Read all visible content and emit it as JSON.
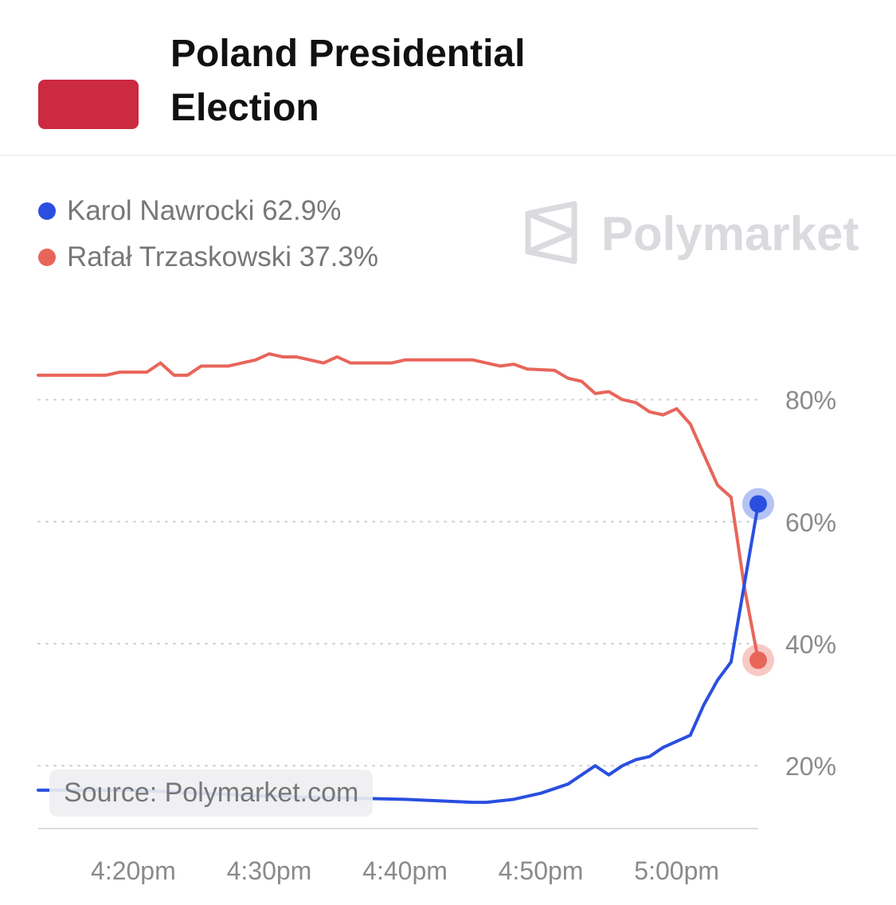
{
  "header": {
    "title_line1": "Poland Presidential",
    "title_line2": "Election",
    "flag_color": "#cc2a40"
  },
  "legend": {
    "items": [
      {
        "label": "Karol Nawrocki 62.9%",
        "color": "#2a4fe0"
      },
      {
        "label": "Rafał Trzaskowski 37.3%",
        "color": "#e8655a"
      }
    ]
  },
  "watermark": {
    "text": "Polymarket",
    "icon": "polymarket-logo-icon",
    "color": "#dadadf"
  },
  "source": {
    "text": "Source: Polymarket.com"
  },
  "chart_data": {
    "type": "line",
    "title": "Poland Presidential Election",
    "xlabel": "",
    "ylabel": "",
    "ylim": [
      0,
      100
    ],
    "xlim": [
      "4:13pm",
      "5:06pm"
    ],
    "y_ticks": [
      "20%",
      "40%",
      "60%",
      "80%"
    ],
    "x_ticks": [
      "4:20pm",
      "4:30pm",
      "4:40pm",
      "4:50pm",
      "5:00pm"
    ],
    "grid": true,
    "legend_position": "top-left",
    "series": [
      {
        "name": "Rafał Trzaskowski",
        "color": "#e8655a",
        "values": [
          [
            "4:13pm",
            84
          ],
          [
            "4:18pm",
            84
          ],
          [
            "4:19pm",
            84.5
          ],
          [
            "4:21pm",
            84.5
          ],
          [
            "4:22pm",
            86
          ],
          [
            "4:23pm",
            84
          ],
          [
            "4:24pm",
            84
          ],
          [
            "4:25pm",
            85.5
          ],
          [
            "4:27pm",
            85.5
          ],
          [
            "4:29pm",
            86.5
          ],
          [
            "4:30pm",
            87.5
          ],
          [
            "4:31pm",
            87
          ],
          [
            "4:32pm",
            87
          ],
          [
            "4:34pm",
            86
          ],
          [
            "4:35pm",
            87
          ],
          [
            "4:36pm",
            86
          ],
          [
            "4:39pm",
            86
          ],
          [
            "4:40pm",
            86.5
          ],
          [
            "4:45pm",
            86.5
          ],
          [
            "4:46pm",
            86
          ],
          [
            "4:47pm",
            85.5
          ],
          [
            "4:48pm",
            85.8
          ],
          [
            "4:49pm",
            85
          ],
          [
            "4:51pm",
            84.8
          ],
          [
            "4:52pm",
            83.5
          ],
          [
            "4:53pm",
            83
          ],
          [
            "4:54pm",
            81
          ],
          [
            "4:55pm",
            81.3
          ],
          [
            "4:56pm",
            80
          ],
          [
            "4:57pm",
            79.5
          ],
          [
            "4:58pm",
            78
          ],
          [
            "4:59pm",
            77.5
          ],
          [
            "5:00pm",
            78.5
          ],
          [
            "5:01pm",
            76
          ],
          [
            "5:02pm",
            71
          ],
          [
            "5:03pm",
            66
          ],
          [
            "5:04pm",
            64
          ],
          [
            "5:05pm",
            49
          ],
          [
            "5:06pm",
            37.3
          ]
        ]
      },
      {
        "name": "Karol Nawrocki",
        "color": "#2a4fe0",
        "values": [
          [
            "4:13pm",
            16
          ],
          [
            "4:20pm",
            16
          ],
          [
            "4:30pm",
            15
          ],
          [
            "4:40pm",
            14.5
          ],
          [
            "4:45pm",
            14
          ],
          [
            "4:46pm",
            14
          ],
          [
            "4:48pm",
            14.5
          ],
          [
            "4:50pm",
            15.5
          ],
          [
            "4:52pm",
            17
          ],
          [
            "4:53pm",
            18.5
          ],
          [
            "4:54pm",
            20
          ],
          [
            "4:55pm",
            18.5
          ],
          [
            "4:56pm",
            20
          ],
          [
            "4:57pm",
            21
          ],
          [
            "4:58pm",
            21.5
          ],
          [
            "4:59pm",
            23
          ],
          [
            "5:00pm",
            24
          ],
          [
            "5:01pm",
            25
          ],
          [
            "5:02pm",
            30
          ],
          [
            "5:03pm",
            34
          ],
          [
            "5:04pm",
            37
          ],
          [
            "5:05pm",
            50
          ],
          [
            "5:06pm",
            62.9
          ]
        ]
      }
    ]
  }
}
